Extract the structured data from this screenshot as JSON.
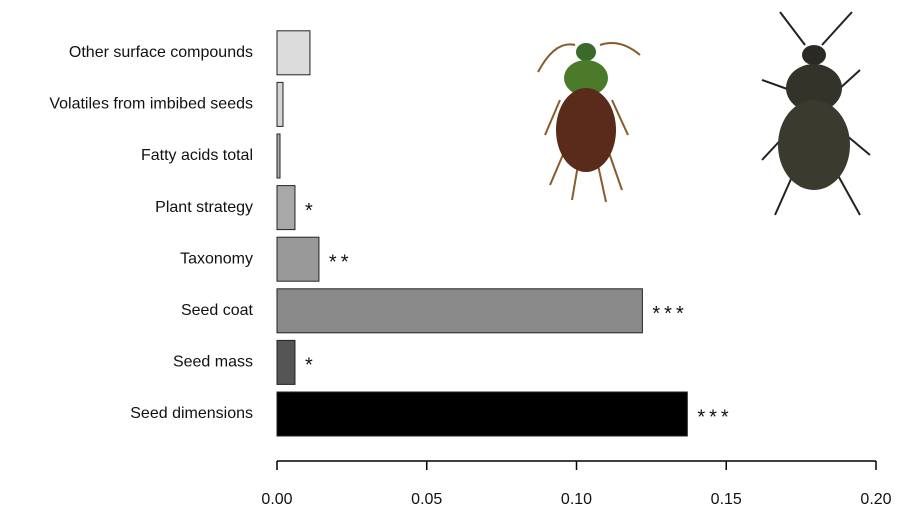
{
  "chart_data": {
    "type": "bar",
    "orientation": "horizontal",
    "categories": [
      "Other surface compounds",
      "Volatiles from imbibed seeds",
      "Fatty acids total",
      "Plant strategy",
      "Taxonomy",
      "Seed coat",
      "Seed mass",
      "Seed dimensions"
    ],
    "values": [
      0.011,
      0.002,
      0.001,
      0.006,
      0.014,
      0.122,
      0.006,
      0.137
    ],
    "colors": [
      "#dcdcdc",
      "#d4d4d4",
      "#b0b0b0",
      "#a8a8a8",
      "#999999",
      "#8a8a8a",
      "#555555",
      "#000000"
    ],
    "annotations": [
      null,
      null,
      null,
      "*",
      "**",
      "***",
      "*",
      "***"
    ],
    "xlim": [
      0,
      0.2
    ],
    "xticks": [
      {
        "value": 0,
        "label": "0.00"
      },
      {
        "value": 0.05,
        "label": "0.05"
      },
      {
        "value": 0.1,
        "label": "0.10"
      },
      {
        "value": 0.15,
        "label": "0.15"
      },
      {
        "value": 0.2,
        "label": "0.20"
      }
    ]
  }
}
